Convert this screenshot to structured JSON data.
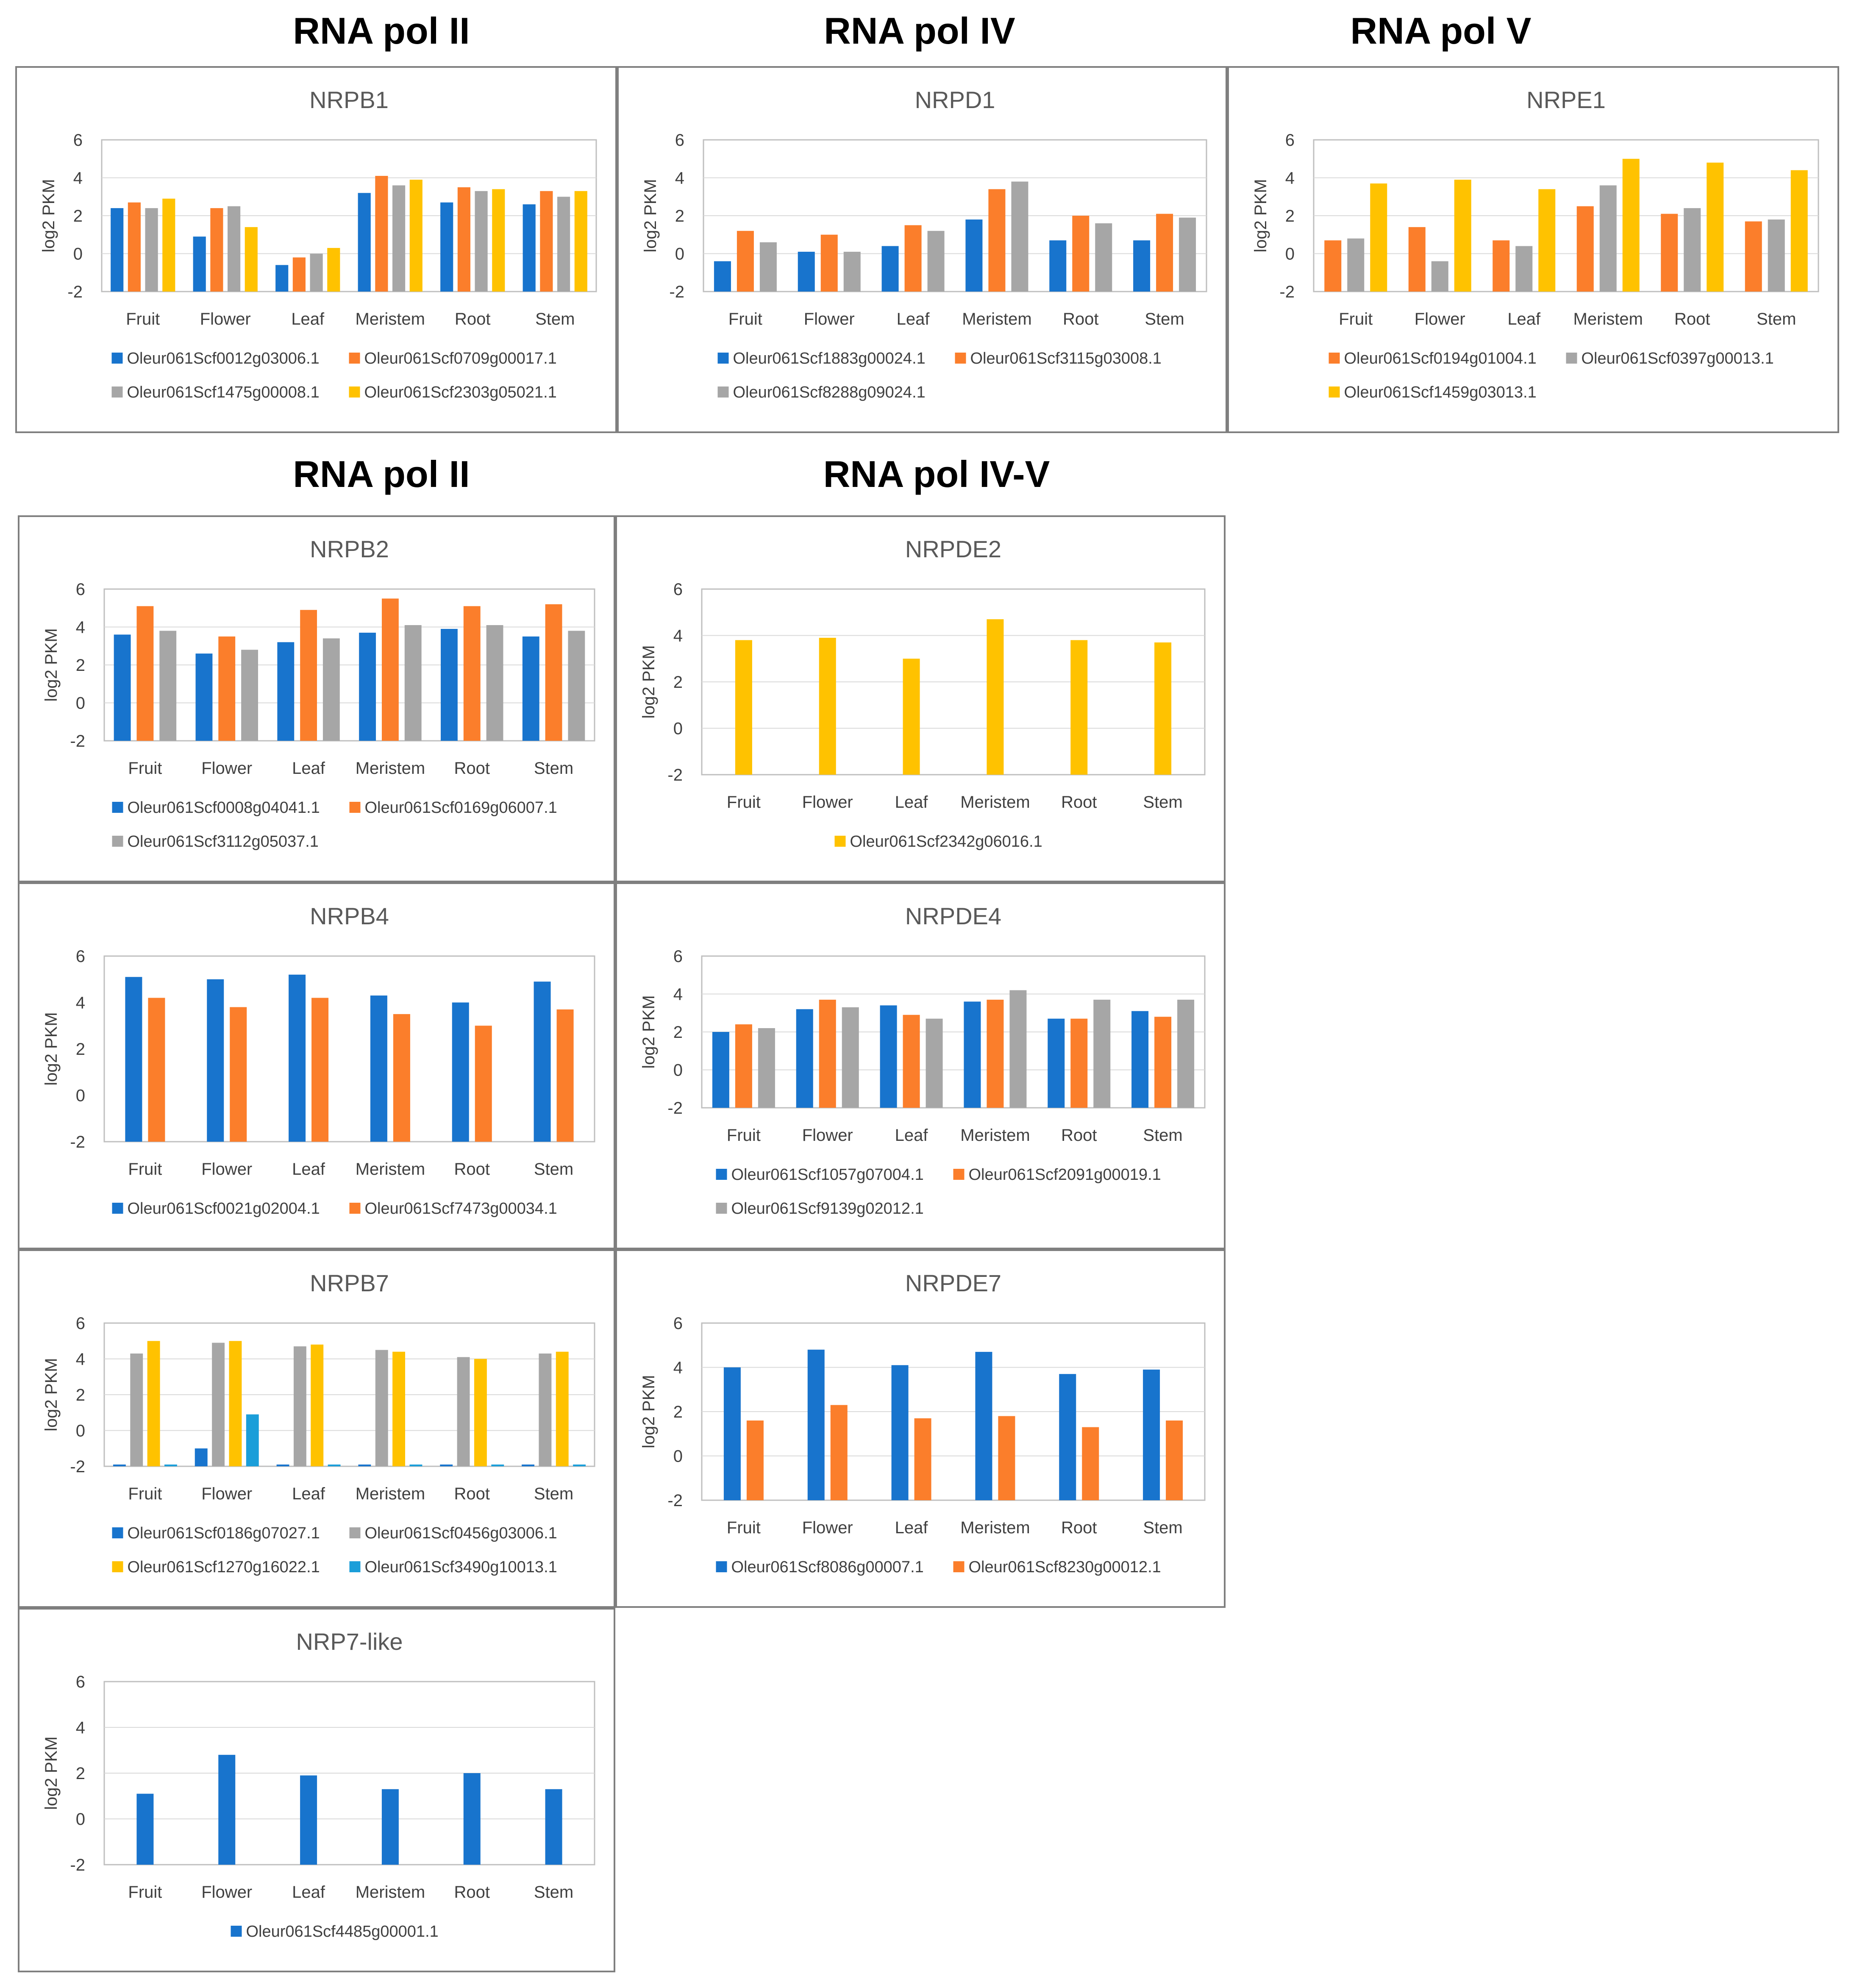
{
  "colors": {
    "blue": "#1874CD",
    "orange": "#FB7E2B",
    "gray": "#A6A6A6",
    "yellow": "#FFC200",
    "lightblue": "#1B9ED9"
  },
  "section_titles": {
    "pol2_top": "RNA pol II",
    "pol4": "RNA pol IV",
    "pol5": "RNA pol V",
    "pol2_mid": "RNA pol II",
    "pol45": "RNA pol IV-V"
  },
  "chart_data": [
    {
      "id": "nrpb1",
      "type": "bar",
      "title": "NRPB1",
      "ylabel": "log2 PKM",
      "xlabel": "",
      "ylim": [
        -2,
        6
      ],
      "yticks": [
        -2,
        0,
        2,
        4,
        6
      ],
      "grid": true,
      "legend_position": "bottom",
      "categories": [
        "Fruit",
        "Flower",
        "Leaf",
        "Meristem",
        "Root",
        "Stem"
      ],
      "series": [
        {
          "name": "Oleur061Scf0012g03006.1",
          "color": "blue",
          "values": [
            2.4,
            0.9,
            -0.6,
            3.2,
            2.7,
            2.6
          ]
        },
        {
          "name": "Oleur061Scf0709g00017.1",
          "color": "orange",
          "values": [
            2.7,
            2.4,
            -0.2,
            4.1,
            3.5,
            3.3
          ]
        },
        {
          "name": "Oleur061Scf1475g00008.1",
          "color": "gray",
          "values": [
            2.4,
            2.5,
            0.0,
            3.6,
            3.3,
            3.0
          ]
        },
        {
          "name": "Oleur061Scf2303g05021.1",
          "color": "yellow",
          "values": [
            2.9,
            1.4,
            0.3,
            3.9,
            3.4,
            3.3
          ]
        }
      ]
    },
    {
      "id": "nrpd1",
      "type": "bar",
      "title": "NRPD1",
      "ylabel": "log2 PKM",
      "xlabel": "",
      "ylim": [
        -2,
        6
      ],
      "yticks": [
        -2,
        0,
        2,
        4,
        6
      ],
      "grid": true,
      "legend_position": "bottom",
      "categories": [
        "Fruit",
        "Flower",
        "Leaf",
        "Meristem",
        "Root",
        "Stem"
      ],
      "series": [
        {
          "name": "Oleur061Scf1883g00024.1",
          "color": "blue",
          "values": [
            -0.4,
            0.1,
            0.4,
            1.8,
            0.7,
            0.7
          ]
        },
        {
          "name": "Oleur061Scf3115g03008.1",
          "color": "orange",
          "values": [
            1.2,
            1.0,
            1.5,
            3.4,
            2.0,
            2.1
          ]
        },
        {
          "name": "Oleur061Scf8288g09024.1",
          "color": "gray",
          "values": [
            0.6,
            0.1,
            1.2,
            3.8,
            1.6,
            1.9
          ]
        }
      ]
    },
    {
      "id": "nrpe1",
      "type": "bar",
      "title": "NRPE1",
      "ylabel": "log2 PKM",
      "xlabel": "",
      "ylim": [
        -2,
        6
      ],
      "yticks": [
        -2,
        0,
        2,
        4,
        6
      ],
      "grid": true,
      "legend_position": "bottom",
      "categories": [
        "Fruit",
        "Flower",
        "Leaf",
        "Meristem",
        "Root",
        "Stem"
      ],
      "series": [
        {
          "name": "Oleur061Scf0194g01004.1",
          "color": "orange",
          "values": [
            0.7,
            1.4,
            0.7,
            2.5,
            2.1,
            1.7
          ]
        },
        {
          "name": "Oleur061Scf0397g00013.1",
          "color": "gray",
          "values": [
            0.8,
            -0.4,
            0.4,
            3.6,
            2.4,
            1.8
          ]
        },
        {
          "name": "Oleur061Scf1459g03013.1",
          "color": "yellow",
          "values": [
            3.7,
            3.9,
            3.4,
            5.0,
            4.8,
            4.4
          ]
        }
      ]
    },
    {
      "id": "nrpb2",
      "type": "bar",
      "title": "NRPB2",
      "ylabel": "log2 PKM",
      "xlabel": "",
      "ylim": [
        -2,
        6
      ],
      "yticks": [
        -2,
        0,
        2,
        4,
        6
      ],
      "grid": true,
      "legend_position": "bottom",
      "categories": [
        "Fruit",
        "Flower",
        "Leaf",
        "Meristem",
        "Root",
        "Stem"
      ],
      "series": [
        {
          "name": "Oleur061Scf0008g04041.1",
          "color": "blue",
          "values": [
            3.6,
            2.6,
            3.2,
            3.7,
            3.9,
            3.5
          ]
        },
        {
          "name": "Oleur061Scf0169g06007.1",
          "color": "orange",
          "values": [
            5.1,
            3.5,
            4.9,
            5.5,
            5.1,
            5.2
          ]
        },
        {
          "name": "Oleur061Scf3112g05037.1",
          "color": "gray",
          "values": [
            3.8,
            2.8,
            3.4,
            4.1,
            4.1,
            3.8
          ]
        }
      ]
    },
    {
      "id": "nrpde2",
      "type": "bar",
      "title": "NRPDE2",
      "ylabel": "log2 PKM",
      "xlabel": "",
      "ylim": [
        -2,
        6
      ],
      "yticks": [
        -2,
        0,
        2,
        4,
        6
      ],
      "grid": true,
      "legend_position": "bottom",
      "categories": [
        "Fruit",
        "Flower",
        "Leaf",
        "Meristem",
        "Root",
        "Stem"
      ],
      "series": [
        {
          "name": "Oleur061Scf2342g06016.1",
          "color": "yellow",
          "values": [
            3.8,
            3.9,
            3.0,
            4.7,
            3.8,
            3.7
          ]
        }
      ]
    },
    {
      "id": "nrpb4",
      "type": "bar",
      "title": "NRPB4",
      "ylabel": "log2 PKM",
      "xlabel": "",
      "ylim": [
        -2,
        6
      ],
      "yticks": [
        -2,
        0,
        2,
        4,
        6
      ],
      "grid": false,
      "legend_position": "bottom",
      "categories": [
        "Fruit",
        "Flower",
        "Leaf",
        "Meristem",
        "Root",
        "Stem"
      ],
      "series": [
        {
          "name": "Oleur061Scf0021g02004.1",
          "color": "blue",
          "values": [
            5.1,
            5.0,
            5.2,
            4.3,
            4.0,
            4.9
          ]
        },
        {
          "name": "Oleur061Scf7473g00034.1",
          "color": "orange",
          "values": [
            4.2,
            3.8,
            4.2,
            3.5,
            3.0,
            3.7
          ]
        }
      ]
    },
    {
      "id": "nrpde4",
      "type": "bar",
      "title": "NRPDE4",
      "ylabel": "log2 PKM",
      "xlabel": "",
      "ylim": [
        -2,
        6
      ],
      "yticks": [
        -2,
        0,
        2,
        4,
        6
      ],
      "grid": true,
      "legend_position": "bottom",
      "categories": [
        "Fruit",
        "Flower",
        "Leaf",
        "Meristem",
        "Root",
        "Stem"
      ],
      "series": [
        {
          "name": "Oleur061Scf1057g07004.1",
          "color": "blue",
          "values": [
            2.0,
            3.2,
            3.4,
            3.6,
            2.7,
            3.1
          ]
        },
        {
          "name": "Oleur061Scf2091g00019.1",
          "color": "orange",
          "values": [
            2.4,
            3.7,
            2.9,
            3.7,
            2.7,
            2.8
          ]
        },
        {
          "name": "Oleur061Scf9139g02012.1",
          "color": "gray",
          "values": [
            2.2,
            3.3,
            2.7,
            4.2,
            3.7,
            3.7
          ]
        }
      ]
    },
    {
      "id": "nrpb7",
      "type": "bar",
      "title": "NRPB7",
      "ylabel": "log2 PKM",
      "xlabel": "",
      "ylim": [
        -2,
        6
      ],
      "yticks": [
        -2,
        0,
        2,
        4,
        6
      ],
      "grid": true,
      "legend_position": "bottom",
      "categories": [
        "Fruit",
        "Flower",
        "Leaf",
        "Meristem",
        "Root",
        "Stem"
      ],
      "series": [
        {
          "name": "Oleur061Scf0186g07027.1",
          "color": "blue",
          "values": [
            -1.9,
            -1.0,
            -1.9,
            -1.9,
            -1.9,
            -1.9
          ]
        },
        {
          "name": "Oleur061Scf0456g03006.1",
          "color": "gray",
          "values": [
            4.3,
            4.9,
            4.7,
            4.5,
            4.1,
            4.3
          ]
        },
        {
          "name": "Oleur061Scf1270g16022.1",
          "color": "yellow",
          "values": [
            5.0,
            5.0,
            4.8,
            4.4,
            4.0,
            4.4
          ]
        },
        {
          "name": "Oleur061Scf3490g10013.1",
          "color": "lightblue",
          "values": [
            -1.9,
            0.9,
            -1.9,
            -1.9,
            -1.9,
            -1.9
          ]
        }
      ]
    },
    {
      "id": "nrpde7",
      "type": "bar",
      "title": "NRPDE7",
      "ylabel": "log2 PKM",
      "xlabel": "",
      "ylim": [
        -2,
        6
      ],
      "yticks": [
        -2,
        0,
        2,
        4,
        6
      ],
      "grid": true,
      "legend_position": "bottom",
      "categories": [
        "Fruit",
        "Flower",
        "Leaf",
        "Meristem",
        "Root",
        "Stem"
      ],
      "series": [
        {
          "name": "Oleur061Scf8086g00007.1",
          "color": "blue",
          "values": [
            4.0,
            4.8,
            4.1,
            4.7,
            3.7,
            3.9
          ]
        },
        {
          "name": "Oleur061Scf8230g00012.1",
          "color": "orange",
          "values": [
            1.6,
            2.3,
            1.7,
            1.8,
            1.3,
            1.6
          ]
        }
      ]
    },
    {
      "id": "nrp7like",
      "type": "bar",
      "title": "NRP7-like",
      "ylabel": "log2 PKM",
      "xlabel": "",
      "ylim": [
        -2,
        6
      ],
      "yticks": [
        -2,
        0,
        2,
        4,
        6
      ],
      "grid": true,
      "legend_position": "bottom",
      "categories": [
        "Fruit",
        "Flower",
        "Leaf",
        "Meristem",
        "Root",
        "Stem"
      ],
      "series": [
        {
          "name": "Oleur061Scf4485g00001.1",
          "color": "blue",
          "values": [
            1.1,
            2.8,
            1.9,
            1.3,
            2.0,
            1.3
          ]
        }
      ]
    }
  ]
}
